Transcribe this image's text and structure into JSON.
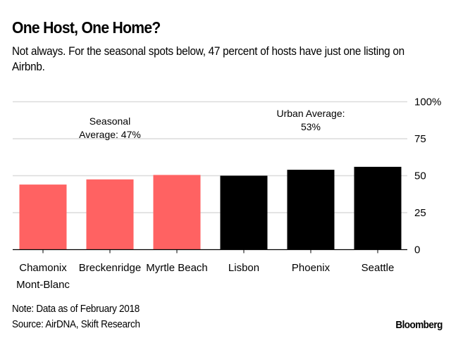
{
  "header": {
    "title": "One Host, One Home?",
    "subtitle": "Not always. For the seasonal spots below, 47 percent of hosts have just one listing on Airbnb."
  },
  "footer": {
    "note": "Note: Data as of February 2018",
    "source": "Source: AirDNA, Skift Research",
    "brand": "Bloomberg"
  },
  "chart_data": {
    "type": "bar",
    "title": "One Host, One Home?",
    "xlabel": "",
    "ylabel": "",
    "ylim": [
      0,
      100
    ],
    "yticks": [
      0,
      25,
      50,
      75,
      100
    ],
    "ytick_labels": [
      "0",
      "25",
      "50",
      "75",
      "100%"
    ],
    "y_axis_side": "right",
    "grid": true,
    "categories": [
      {
        "lines": [
          "Chamonix",
          "Mont-Blanc"
        ]
      },
      {
        "lines": [
          "Breckenridge"
        ]
      },
      {
        "lines": [
          "Myrtle Beach"
        ]
      },
      {
        "lines": [
          "Lisbon"
        ]
      },
      {
        "lines": [
          "Phoenix"
        ]
      },
      {
        "lines": [
          "Seattle"
        ]
      }
    ],
    "values": [
      44,
      47.5,
      50.5,
      50,
      54,
      56
    ],
    "groups": [
      "seasonal",
      "seasonal",
      "seasonal",
      "urban",
      "urban",
      "urban"
    ],
    "colors": {
      "seasonal": "#ff6262",
      "urban": "#000000",
      "grid": "#dcdcdc",
      "axis": "#000000"
    },
    "annotations": [
      {
        "lines": [
          "Seasonal",
          "Average: 47%"
        ],
        "group": "seasonal"
      },
      {
        "lines": [
          "Urban Average:",
          "53%"
        ],
        "group": "urban"
      }
    ]
  }
}
